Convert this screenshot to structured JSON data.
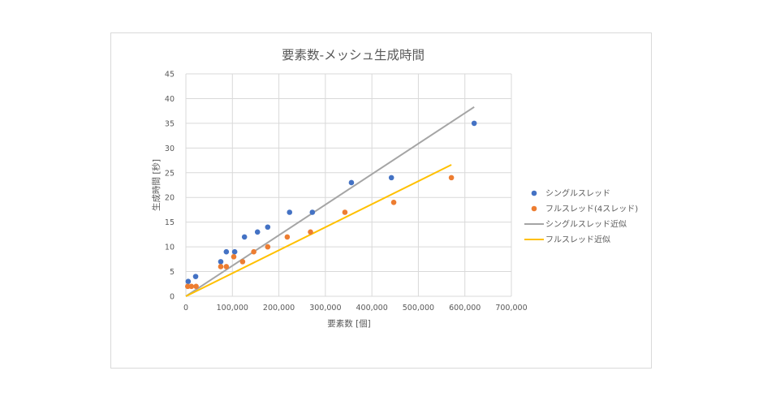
{
  "chart_data": {
    "type": "scatter",
    "title": "要素数-メッシュ生成時間",
    "xlabel": "要素数 [個]",
    "ylabel": "生成時間 [秒]",
    "xlim": [
      0,
      700000
    ],
    "ylim": [
      0,
      45
    ],
    "x_ticks": [
      0,
      100000,
      200000,
      300000,
      400000,
      500000,
      600000,
      700000
    ],
    "x_tick_labels": [
      "0",
      "100,000",
      "200,000",
      "300,000",
      "400,000",
      "500,000",
      "600,000",
      "700,000"
    ],
    "y_ticks": [
      0,
      5,
      10,
      15,
      20,
      25,
      30,
      35,
      40,
      45
    ],
    "y_tick_labels": [
      "0",
      "5",
      "10",
      "15",
      "20",
      "25",
      "30",
      "35",
      "40",
      "45"
    ],
    "grid": true,
    "legend_position": "right",
    "series": [
      {
        "name": "シングルスレッド",
        "kind": "scatter",
        "color": "#4472C4",
        "points": [
          [
            5000,
            3
          ],
          [
            21000,
            4
          ],
          [
            75000,
            7
          ],
          [
            87000,
            9
          ],
          [
            105000,
            9
          ],
          [
            126000,
            12
          ],
          [
            154000,
            13
          ],
          [
            176000,
            14
          ],
          [
            223000,
            17
          ],
          [
            272000,
            17
          ],
          [
            356000,
            23
          ],
          [
            442000,
            24
          ],
          [
            620000,
            35
          ]
        ]
      },
      {
        "name": "フルスレッド(4スレッド)",
        "kind": "scatter",
        "color": "#ED7D31",
        "points": [
          [
            4000,
            2
          ],
          [
            12000,
            2
          ],
          [
            22000,
            2
          ],
          [
            75000,
            6
          ],
          [
            87000,
            6
          ],
          [
            103000,
            8
          ],
          [
            122000,
            7
          ],
          [
            146000,
            9
          ],
          [
            176000,
            10
          ],
          [
            218000,
            12
          ],
          [
            268000,
            13
          ],
          [
            342000,
            17
          ],
          [
            447000,
            19
          ],
          [
            571000,
            24
          ]
        ]
      },
      {
        "name": "シングルスレッド近似",
        "kind": "trendline",
        "color": "#A5A5A5",
        "points": [
          [
            0,
            0
          ],
          [
            620000,
            38.3
          ]
        ]
      },
      {
        "name": "フルスレッド近似",
        "kind": "trendline",
        "color": "#FFC000",
        "points": [
          [
            0,
            0
          ],
          [
            571000,
            26.6
          ]
        ]
      }
    ]
  }
}
